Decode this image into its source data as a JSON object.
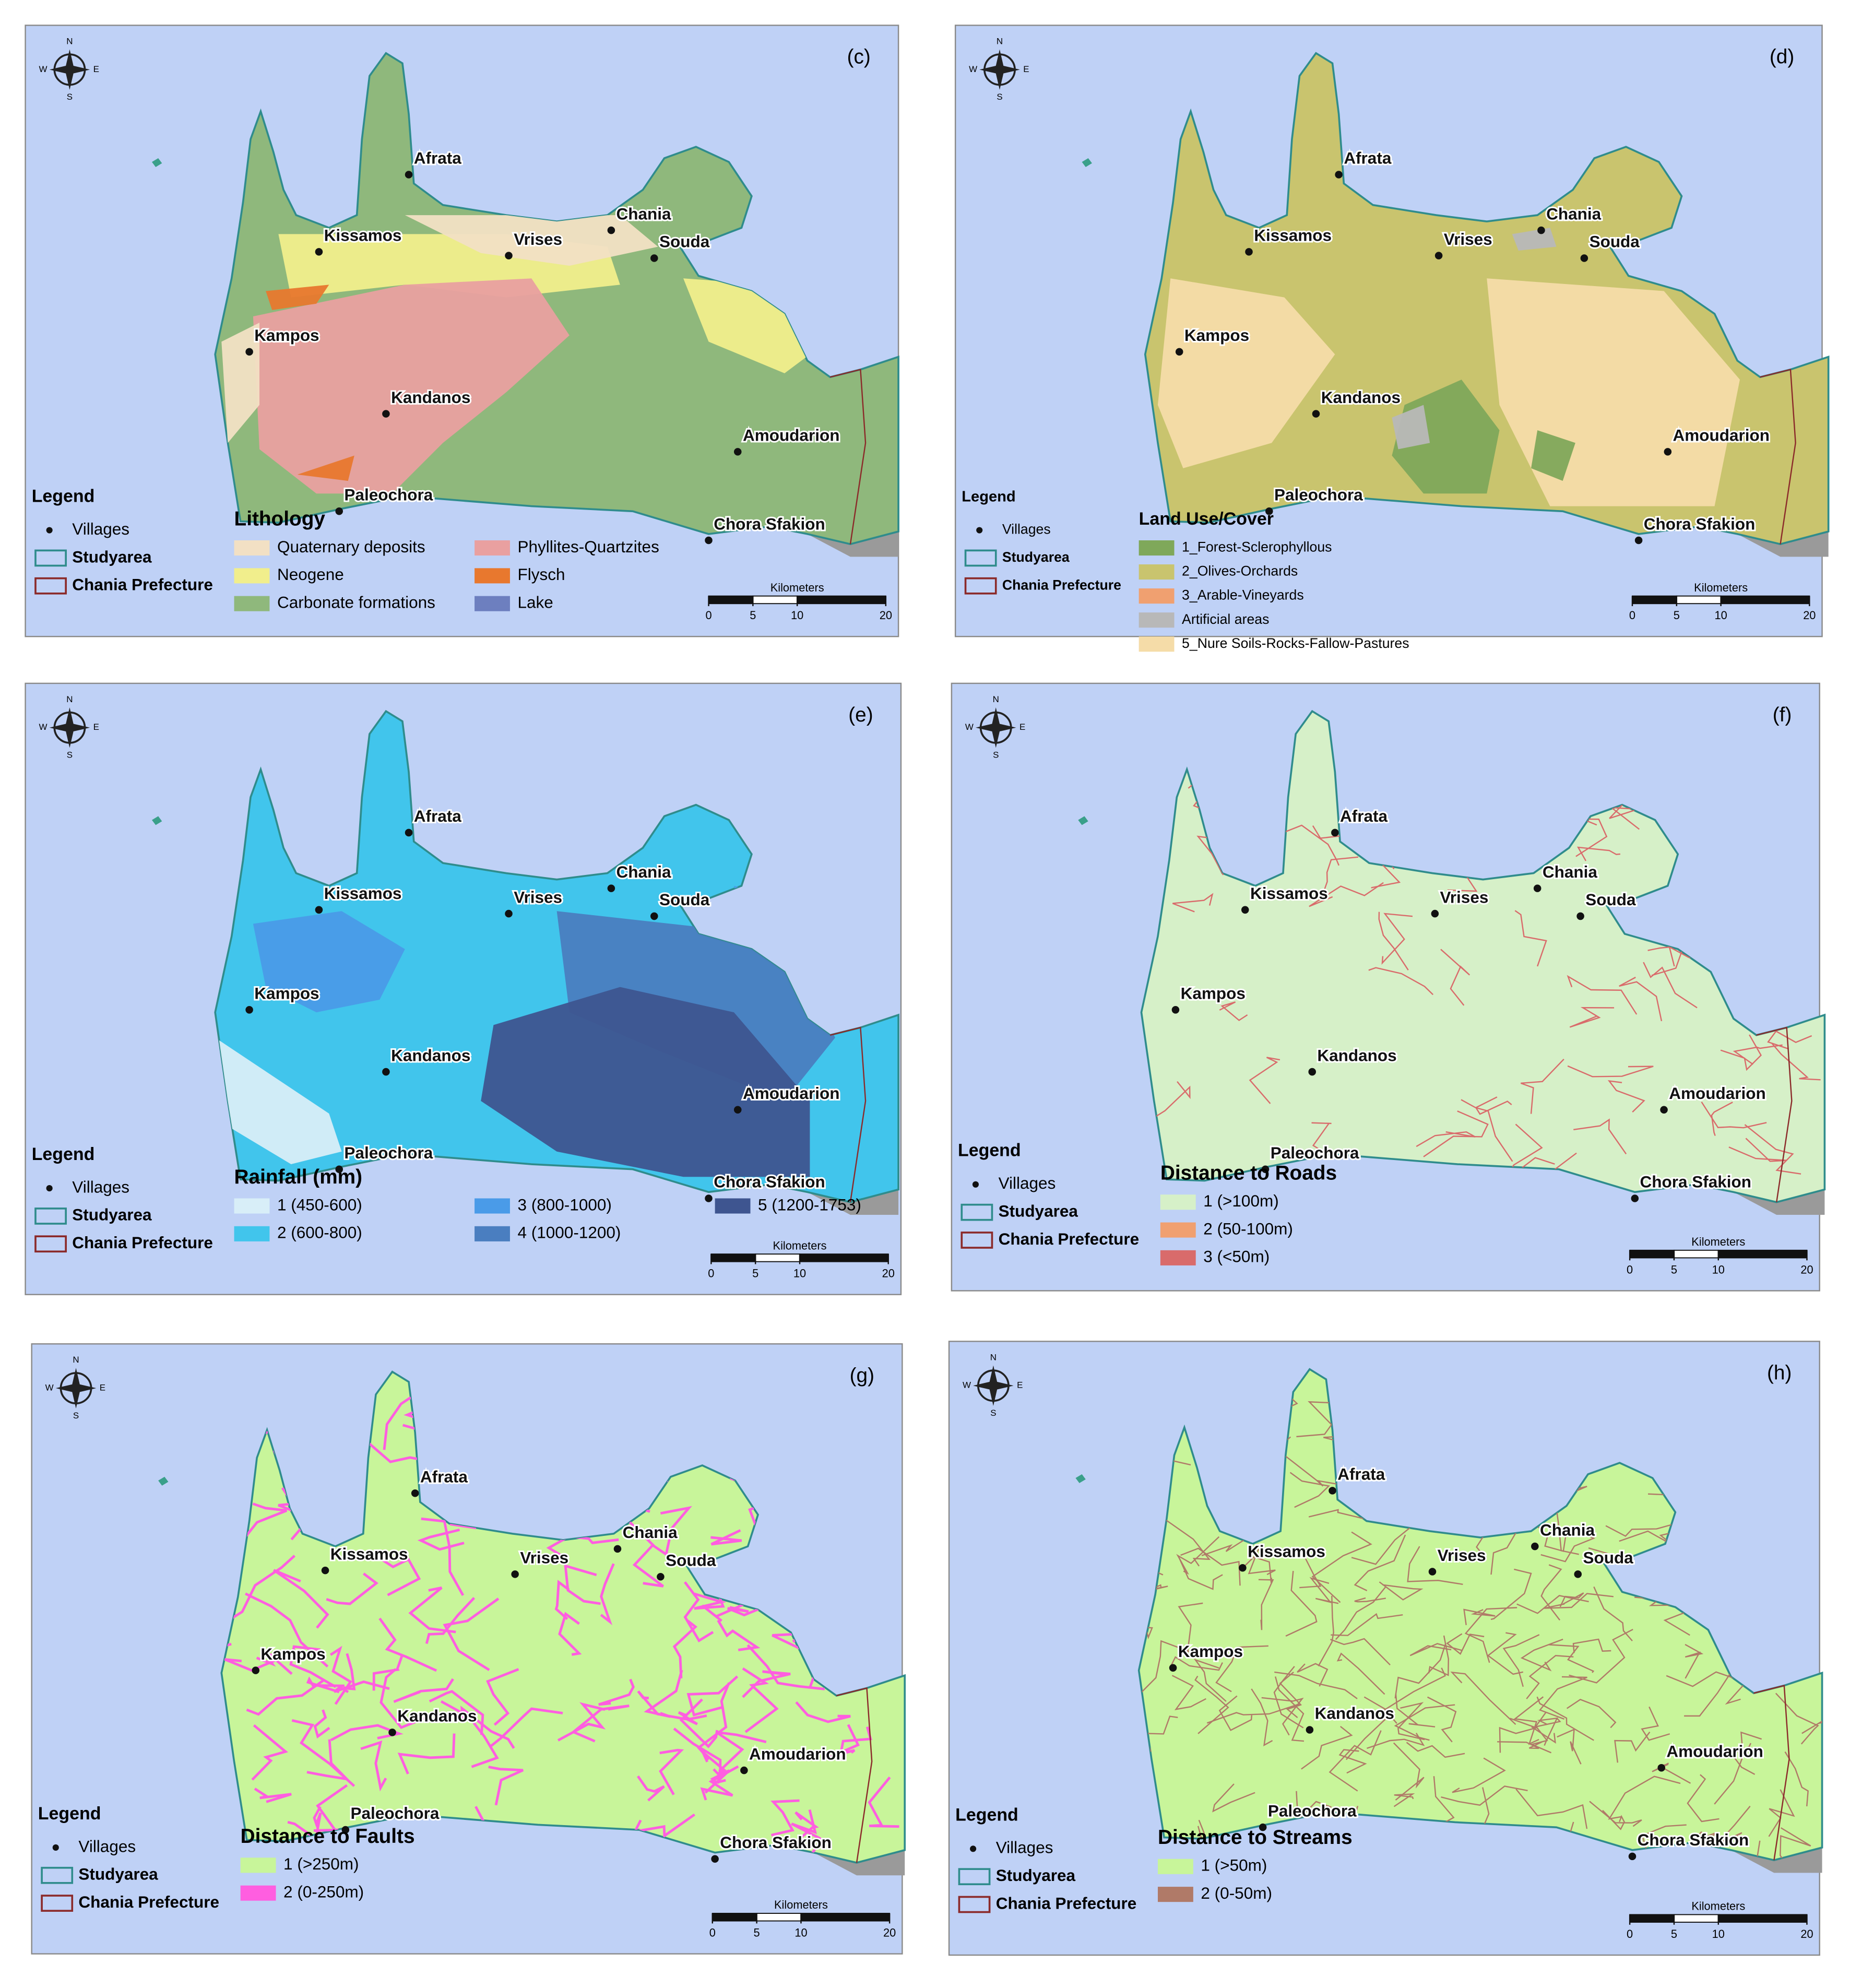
{
  "compass": {
    "n": "N",
    "e": "E",
    "s": "S",
    "w": "W"
  },
  "legend_title": "Legend",
  "villages_label": "Villages",
  "studyarea_label": "Studyarea",
  "prefecture_label": "Chania Prefecture",
  "scale_title": "Kilometers",
  "scale_ticks": [
    0,
    5,
    10,
    20
  ],
  "places": [
    "Afrata",
    "Kissamos",
    "Vrises",
    "Chania",
    "Souda",
    "Kampos",
    "Kandanos",
    "Amoudarion",
    "Paleochora",
    "Chora Sfakion"
  ],
  "panels": [
    {
      "label": "(c)",
      "layer_title": "Lithology",
      "classes": [
        {
          "name": "Quaternary deposits",
          "color": "#f2e0c4"
        },
        {
          "name": "Neogene",
          "color": "#f1ee8c"
        },
        {
          "name": "Carbonate formations",
          "color": "#8fb87c"
        },
        {
          "name": "Phyllites-Quartzites",
          "color": "#e9a0a0"
        },
        {
          "name": "Flysch",
          "color": "#e8782e"
        },
        {
          "name": "Lake",
          "color": "#6d7fbf"
        }
      ]
    },
    {
      "label": "(d)",
      "layer_title": "Land Use/Cover",
      "classes": [
        {
          "name": "1_Forest-Sclerophyllous",
          "color": "#7fa85a"
        },
        {
          "name": "2_Olives-Orchards",
          "color": "#c9c46e"
        },
        {
          "name": "3_Arable-Vineyards",
          "color": "#f0a070"
        },
        {
          "name": "Artificial areas",
          "color": "#b8b8b8"
        },
        {
          "name": "5_Nure Soils-Rocks-Fallow-Pastures",
          "color": "#f5dca8"
        }
      ]
    },
    {
      "label": "(e)",
      "layer_title": "Rainfall (mm)",
      "classes": [
        {
          "name": "1 (450-600)",
          "color": "#d8eef8"
        },
        {
          "name": "2 (600-800)",
          "color": "#41c5ec"
        },
        {
          "name": "3 (800-1000)",
          "color": "#4a9be8"
        },
        {
          "name": "4 (1000-1200)",
          "color": "#4a7ec0"
        },
        {
          "name": "5 (1200-1753)",
          "color": "#3e5590"
        }
      ]
    },
    {
      "label": "(f)",
      "layer_title": "Distance to Roads",
      "classes": [
        {
          "name": "1 (>100m)",
          "color": "#d6f0c8"
        },
        {
          "name": "2 (50-100m)",
          "color": "#f0a070"
        },
        {
          "name": "3 (<50m)",
          "color": "#d96b6b"
        }
      ]
    },
    {
      "label": "(g)",
      "layer_title": "Distance to Faults",
      "classes": [
        {
          "name": "1 (>250m)",
          "color": "#c8f59a"
        },
        {
          "name": "2 (0-250m)",
          "color": "#ff5ee0"
        }
      ]
    },
    {
      "label": "(h)",
      "layer_title": "Distance to Streams",
      "classes": [
        {
          "name": "1 (>50m)",
          "color": "#c8f59a"
        },
        {
          "name": "2 (0-50m)",
          "color": "#b07a68"
        }
      ]
    }
  ]
}
